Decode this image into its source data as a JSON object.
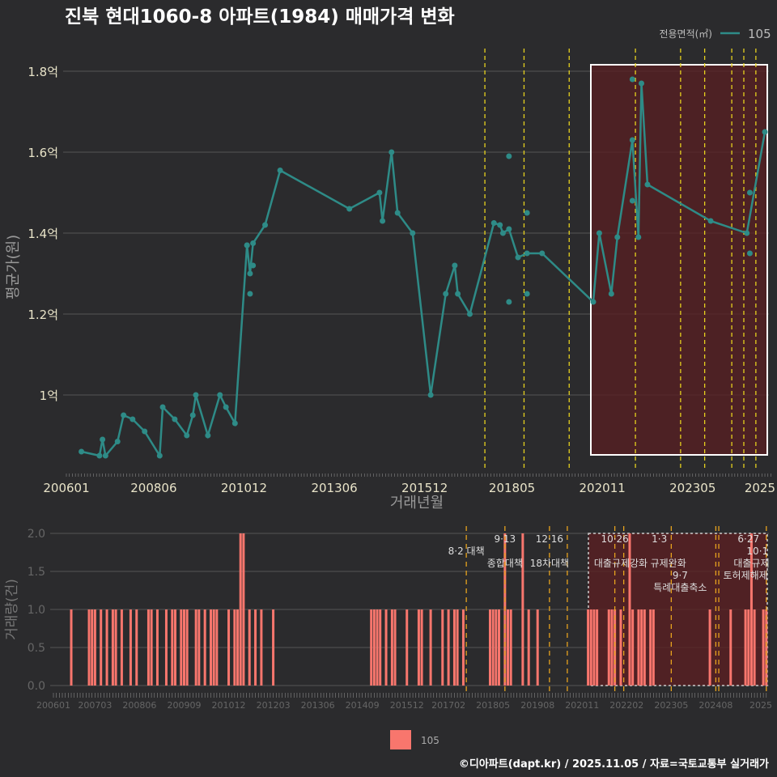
{
  "title": "진북 현대1060-8 아파트(1984) 매매가격 변화",
  "footer": "©디아파트(dapt.kr) / 2025.11.05 / 자료=국토교통부 실거래가",
  "colors": {
    "background": "#2b2b2d",
    "line": "#2e8b87",
    "bar": "#f8766d",
    "highlight": "#5a1f22",
    "policy_top": "#e6d11e",
    "policy_bottom": "#e6a21e",
    "grid": "#555555"
  },
  "chart_data": [
    {
      "type": "line",
      "title": "진북 현대1060-8 아파트(1984) 매매가격 변화",
      "xlabel": "거래년월",
      "ylabel": "평균가(원)",
      "legend": {
        "title": "전용면적(㎡)",
        "entries": [
          "105"
        ],
        "placement": "top-right"
      },
      "ylim": [
        0.8,
        1.86
      ],
      "y_ticks": [
        {
          "v": 1.0,
          "label": "1억"
        },
        {
          "v": 1.2,
          "label": "1.2억"
        },
        {
          "v": 1.4,
          "label": "1.4억"
        },
        {
          "v": 1.6,
          "label": "1.6억"
        },
        {
          "v": 1.8,
          "label": "1.8억"
        }
      ],
      "x_ticks": [
        {
          "m": "200601",
          "label": "200601"
        },
        {
          "m": "200806",
          "label": "200806"
        },
        {
          "m": "201012",
          "label": "201012"
        },
        {
          "m": "201306",
          "label": "201306"
        },
        {
          "m": "201512",
          "label": "201512"
        },
        {
          "m": "201805",
          "label": "201805"
        },
        {
          "m": "202011",
          "label": "202011"
        },
        {
          "m": "202305",
          "label": "202305"
        },
        {
          "m": "202510",
          "label": "2025"
        }
      ],
      "series": [
        {
          "name": "105",
          "points": [
            [
              "200606",
              0.86
            ],
            [
              "200612",
              0.85
            ],
            [
              "200701",
              0.89
            ],
            [
              "200702",
              0.85
            ],
            [
              "200706",
              0.885
            ],
            [
              "200708",
              0.95
            ],
            [
              "200711",
              0.94
            ],
            [
              "200803",
              0.91
            ],
            [
              "200808",
              0.85
            ],
            [
              "200809",
              0.97
            ],
            [
              "200901",
              0.94
            ],
            [
              "200905",
              0.9
            ],
            [
              "200907",
              0.95
            ],
            [
              "200908",
              1.0
            ],
            [
              "200912",
              0.9
            ],
            [
              "201004",
              1.0
            ],
            [
              "201006",
              0.97
            ],
            [
              "201009",
              0.93
            ],
            [
              "201101",
              1.37
            ],
            [
              "201102",
              1.3
            ],
            [
              "201103",
              1.375
            ],
            [
              "201107",
              1.42
            ],
            [
              "201112",
              1.555
            ],
            [
              "201311",
              1.46
            ],
            [
              "201409",
              1.5
            ],
            [
              "201410",
              1.43
            ],
            [
              "201501",
              1.6
            ],
            [
              "201503",
              1.45
            ],
            [
              "201508",
              1.4
            ],
            [
              "201602",
              1.0
            ],
            [
              "201607",
              1.25
            ],
            [
              "201610",
              1.32
            ],
            [
              "201611",
              1.25
            ],
            [
              "201703",
              1.2
            ],
            [
              "201711",
              1.425
            ],
            [
              "201801",
              1.42
            ],
            [
              "201802",
              1.4
            ],
            [
              "201804",
              1.41
            ],
            [
              "201807",
              1.34
            ],
            [
              "201810",
              1.35
            ],
            [
              "201903",
              1.35
            ],
            [
              "202008",
              1.23
            ],
            [
              "202010",
              1.4
            ],
            [
              "202102",
              1.25
            ],
            [
              "202104",
              1.39
            ],
            [
              "202109",
              1.63
            ],
            [
              "202111",
              1.39
            ],
            [
              "202112",
              1.77
            ],
            [
              "202202",
              1.52
            ],
            [
              "202311",
              1.43
            ],
            [
              "202411",
              1.4
            ],
            [
              "202505",
              1.65
            ]
          ]
        }
      ],
      "scatter_points": [
        [
          "201101",
          1.37
        ],
        [
          "201102",
          1.25
        ],
        [
          "201103",
          1.32
        ],
        [
          "201804",
          1.59
        ],
        [
          "201804",
          1.23
        ],
        [
          "201810",
          1.45
        ],
        [
          "201810",
          1.25
        ],
        [
          "202109",
          1.78
        ],
        [
          "202109",
          1.48
        ],
        [
          "202412",
          1.35
        ],
        [
          "202412",
          1.5
        ]
      ],
      "policy_lines": [
        "201708",
        "201809",
        "201912",
        "202110",
        "202301",
        "202309",
        "202406",
        "202410",
        "202502"
      ],
      "highlight_range": [
        "202011",
        "202509"
      ]
    },
    {
      "type": "bar",
      "xlabel": "",
      "ylabel": "거래량(건)",
      "legend": {
        "entries": [
          "105"
        ],
        "placement": "bottom"
      },
      "ylim": [
        0,
        2.0
      ],
      "y_ticks": [
        {
          "v": 0,
          "label": "0.0"
        },
        {
          "v": 0.5,
          "label": "0.5"
        },
        {
          "v": 1.0,
          "label": "1.0"
        },
        {
          "v": 1.5,
          "label": "1.5"
        },
        {
          "v": 2.0,
          "label": "2.0"
        }
      ],
      "x_ticks": [
        "200601",
        "200703",
        "200806",
        "200909",
        "201012",
        "201203",
        "201306",
        "201409",
        "201512",
        "201702",
        "201805",
        "201908",
        "202011",
        "202202",
        "202305",
        "202408",
        "2025"
      ],
      "bars": [
        [
          "200607",
          1
        ],
        [
          "200701",
          1
        ],
        [
          "200702",
          1
        ],
        [
          "200703",
          1
        ],
        [
          "200705",
          1
        ],
        [
          "200707",
          1
        ],
        [
          "200709",
          1
        ],
        [
          "200710",
          1
        ],
        [
          "200712",
          1
        ],
        [
          "200803",
          1
        ],
        [
          "200805",
          1
        ],
        [
          "200809",
          1
        ],
        [
          "200810",
          1
        ],
        [
          "200812",
          1
        ],
        [
          "200903",
          1
        ],
        [
          "200905",
          1
        ],
        [
          "200906",
          1
        ],
        [
          "200908",
          1
        ],
        [
          "200909",
          1
        ],
        [
          "200910",
          1
        ],
        [
          "201001",
          1
        ],
        [
          "201002",
          1
        ],
        [
          "201004",
          1
        ],
        [
          "201006",
          1
        ],
        [
          "201007",
          1
        ],
        [
          "201008",
          1
        ],
        [
          "201012",
          1
        ],
        [
          "201102",
          1
        ],
        [
          "201103",
          1
        ],
        [
          "201104",
          2
        ],
        [
          "201105",
          2
        ],
        [
          "201107",
          1
        ],
        [
          "201109",
          1
        ],
        [
          "201111",
          1
        ],
        [
          "201203",
          1
        ],
        [
          "201412",
          1
        ],
        [
          "201501",
          1
        ],
        [
          "201502",
          1
        ],
        [
          "201503",
          1
        ],
        [
          "201505",
          1
        ],
        [
          "201507",
          1
        ],
        [
          "201508",
          1
        ],
        [
          "201512",
          1
        ],
        [
          "201604",
          1
        ],
        [
          "201605",
          1
        ],
        [
          "201608",
          1
        ],
        [
          "201612",
          1
        ],
        [
          "201702",
          1
        ],
        [
          "201704",
          1
        ],
        [
          "201705",
          1
        ],
        [
          "201707",
          1
        ],
        [
          "201804",
          1
        ],
        [
          "201805",
          1
        ],
        [
          "201806",
          1
        ],
        [
          "201807",
          1
        ],
        [
          "201809",
          2
        ],
        [
          "201810",
          1
        ],
        [
          "201811",
          1
        ],
        [
          "201903",
          2
        ],
        [
          "201905",
          1
        ],
        [
          "201908",
          1
        ],
        [
          "202101",
          1
        ],
        [
          "202102",
          1
        ],
        [
          "202103",
          1
        ],
        [
          "202104",
          1
        ],
        [
          "202108",
          1
        ],
        [
          "202109",
          1
        ],
        [
          "202110",
          1
        ],
        [
          "202112",
          1
        ],
        [
          "202203",
          2
        ],
        [
          "202204",
          1
        ],
        [
          "202206",
          1
        ],
        [
          "202207",
          1
        ],
        [
          "202208",
          1
        ],
        [
          "202210",
          1
        ],
        [
          "202211",
          1
        ],
        [
          "202406",
          1
        ],
        [
          "202501",
          1
        ],
        [
          "202506",
          1
        ],
        [
          "202507",
          1
        ],
        [
          "202508",
          2
        ],
        [
          "202509",
          1
        ],
        [
          "202512",
          1
        ],
        [
          "202601",
          1
        ]
      ],
      "policy_lines": [
        "201708",
        "201809",
        "201912",
        "202006",
        "202110",
        "202201",
        "202305",
        "202408",
        "202409",
        "202601"
      ],
      "highlight_range": [
        "202011",
        "202601"
      ],
      "annotations": [
        {
          "m": "201708",
          "row": 1,
          "text": "8·2 대책"
        },
        {
          "m": "201809",
          "row": 0,
          "text": "9·13"
        },
        {
          "m": "201809",
          "row": 2,
          "text": "종합대책"
        },
        {
          "m": "201912",
          "row": 0,
          "text": "12·16"
        },
        {
          "m": "201912",
          "row": 2,
          "text": "18차대책"
        },
        {
          "m": "202110",
          "row": 0,
          "text": "10·26"
        },
        {
          "m": "202112",
          "row": 2,
          "text": "대출규제강화"
        },
        {
          "m": "202301",
          "row": 0,
          "text": "1·3"
        },
        {
          "m": "202304",
          "row": 2,
          "text": "규제완화"
        },
        {
          "m": "202308",
          "row": 2,
          "text": "9·7"
        },
        {
          "m": "202308",
          "row": 3,
          "text": "특례대출축소"
        },
        {
          "m": "202506",
          "row": 3,
          "text": "토허제해제"
        },
        {
          "m": "202507",
          "row": 0,
          "text": "6·27"
        },
        {
          "m": "202510",
          "row": 0,
          "text": "10·1"
        },
        {
          "m": "202508",
          "row": 2,
          "text": "대출규제"
        }
      ]
    }
  ]
}
